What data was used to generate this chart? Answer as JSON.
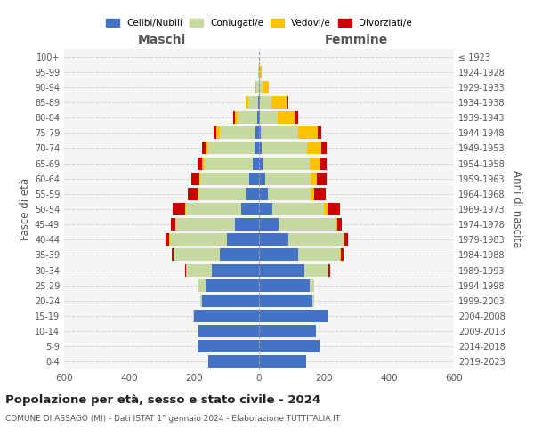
{
  "age_groups": [
    "0-4",
    "5-9",
    "10-14",
    "15-19",
    "20-24",
    "25-29",
    "30-34",
    "35-39",
    "40-44",
    "45-49",
    "50-54",
    "55-59",
    "60-64",
    "65-69",
    "70-74",
    "75-79",
    "80-84",
    "85-89",
    "90-94",
    "95-99",
    "100+"
  ],
  "birth_years": [
    "2019-2023",
    "2014-2018",
    "2009-2013",
    "2004-2008",
    "1999-2003",
    "1994-1998",
    "1989-1993",
    "1984-1988",
    "1979-1983",
    "1974-1978",
    "1969-1973",
    "1964-1968",
    "1959-1963",
    "1954-1958",
    "1949-1953",
    "1944-1948",
    "1939-1943",
    "1934-1938",
    "1929-1933",
    "1924-1928",
    "≤ 1923"
  ],
  "male": {
    "celibe": [
      155,
      190,
      185,
      200,
      175,
      165,
      145,
      120,
      100,
      75,
      55,
      40,
      30,
      20,
      15,
      10,
      5,
      2,
      1,
      0,
      0
    ],
    "coniugato": [
      0,
      0,
      0,
      2,
      5,
      20,
      80,
      140,
      175,
      180,
      170,
      145,
      150,
      150,
      140,
      110,
      60,
      30,
      8,
      2,
      1
    ],
    "vedovo": [
      0,
      0,
      0,
      0,
      0,
      0,
      0,
      0,
      1,
      2,
      2,
      3,
      4,
      5,
      8,
      12,
      10,
      8,
      2,
      0,
      0
    ],
    "divorziato": [
      0,
      0,
      0,
      0,
      0,
      1,
      3,
      8,
      12,
      15,
      40,
      30,
      25,
      15,
      12,
      8,
      5,
      2,
      0,
      0,
      0
    ]
  },
  "female": {
    "nubile": [
      145,
      185,
      175,
      210,
      165,
      155,
      140,
      120,
      90,
      60,
      40,
      28,
      18,
      10,
      8,
      5,
      3,
      2,
      1,
      0,
      0
    ],
    "coniugata": [
      0,
      0,
      0,
      2,
      5,
      15,
      75,
      130,
      170,
      175,
      160,
      130,
      140,
      145,
      140,
      115,
      55,
      35,
      10,
      3,
      0
    ],
    "vedova": [
      0,
      0,
      0,
      0,
      0,
      0,
      0,
      2,
      3,
      5,
      10,
      12,
      20,
      35,
      45,
      60,
      55,
      50,
      20,
      5,
      0
    ],
    "divorziata": [
      0,
      0,
      0,
      0,
      0,
      1,
      3,
      8,
      12,
      15,
      40,
      35,
      30,
      18,
      15,
      12,
      8,
      3,
      0,
      0,
      0
    ]
  },
  "colors": {
    "celibe": "#4472c4",
    "coniugato": "#c5d9a0",
    "vedovo": "#ffc000",
    "divorziato": "#cc0000"
  },
  "legend_labels": [
    "Celibi/Nubili",
    "Coniugati/e",
    "Vedovi/e",
    "Divorziati/e"
  ],
  "xlim": 600,
  "title": "Popolazione per età, sesso e stato civile - 2024",
  "subtitle": "COMUNE DI ASSAGO (MI) - Dati ISTAT 1° gennaio 2024 - Elaborazione TUTTITALIA.IT",
  "ylabel_left": "Fasce di età",
  "ylabel_right": "Anni di nascita",
  "xlabel_left": "Maschi",
  "xlabel_right": "Femmine",
  "bg_color": "#ffffff",
  "plot_bg": "#f5f5f5"
}
